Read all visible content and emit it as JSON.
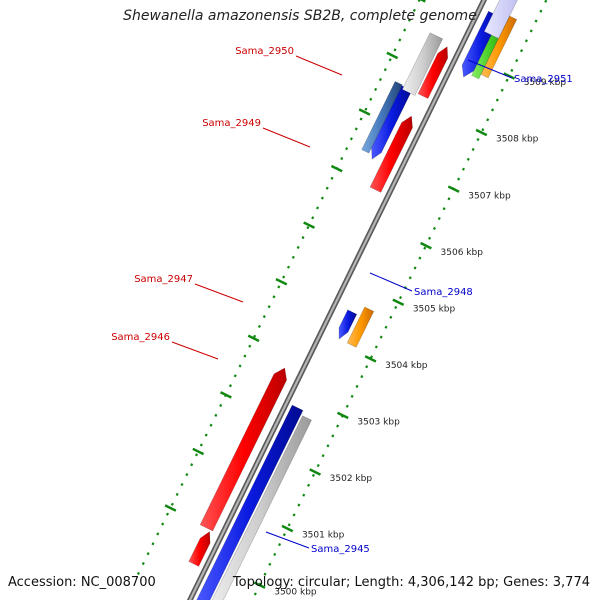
{
  "title": "Shewanella amazonensis SB2B, complete genome",
  "accession_text": "Accession: NC_008700",
  "topology_text": "Topology: circular; Length: 4,306,142 bp; Genes: 3,774",
  "colors": {
    "backbone": "#8a8a8a",
    "dots": "#118811",
    "forward_cds": "#ff1111",
    "reverse_cds": "#0a1ae0",
    "gray_feature": "#c8c8c8",
    "orange_feature": "#ff9900",
    "green_feature": "#44cc22",
    "steel_feature": "#4477bb",
    "forward_label": "#cc0000",
    "reverse_label": "#0000cc",
    "tick_label": "#222222"
  },
  "kbp_ticks": [
    "3500 kbp",
    "3501 kbp",
    "3502 kbp",
    "3503 kbp",
    "3504 kbp",
    "3505 kbp",
    "3506 kbp",
    "3507 kbp",
    "3508 kbp",
    "3509 kbp"
  ],
  "gene_labels_forward": [
    "Sama_2950",
    "Sama_2949",
    "Sama_2947",
    "Sama_2946"
  ],
  "gene_labels_reverse": [
    "Sama_2951",
    "Sama_2948",
    "Sama_2945"
  ]
}
